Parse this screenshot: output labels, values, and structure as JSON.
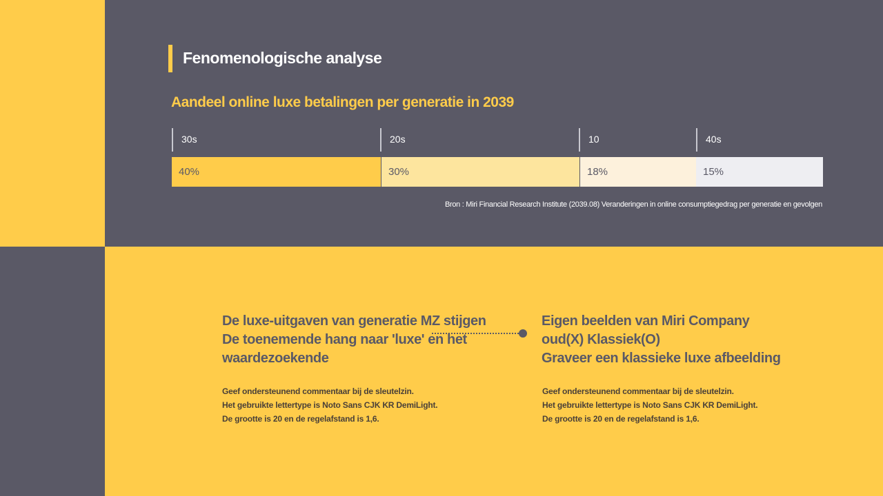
{
  "colors": {
    "yellow": "#ffcc4a",
    "dark": "#5a5966"
  },
  "header": {
    "title": "Fenomenologische analyse"
  },
  "chart_data": {
    "type": "bar",
    "title": "Aandeel online luxe betalingen per generatie in 2039",
    "categories": [
      "30s",
      "20s",
      "10",
      "40s"
    ],
    "values": [
      40,
      30,
      18,
      15
    ],
    "labels": [
      "40%",
      "30%",
      "18%",
      "15%"
    ],
    "colors": [
      "#ffcc4a",
      "#fde59e",
      "#fdf1dc",
      "#eeeef2"
    ],
    "source": "Bron : Miri Financial Research Institute (2039.08) Veranderingen in online consumptiegedrag per generatie en gevolgen"
  },
  "left": {
    "heading": [
      "De luxe-uitgaven van generatie MZ stijgen",
      "De toenemende hang naar 'luxe' en het",
      "waardezoekende"
    ],
    "body": [
      "Geef ondersteunend commentaar bij de sleutelzin.",
      "Het gebruikte lettertype is Noto Sans CJK KR DemiLight.",
      "De grootte is 20 en de regelafstand is 1,6."
    ]
  },
  "right": {
    "heading": [
      "Eigen beelden van Miri Company",
      "oud(X) Klassiek(O)",
      "Graveer een klassieke luxe afbeelding"
    ],
    "body": [
      "Geef ondersteunend commentaar bij de sleutelzin.",
      "Het gebruikte lettertype is Noto Sans CJK KR DemiLight.",
      "De grootte is 20 en de regelafstand is 1,6."
    ]
  }
}
